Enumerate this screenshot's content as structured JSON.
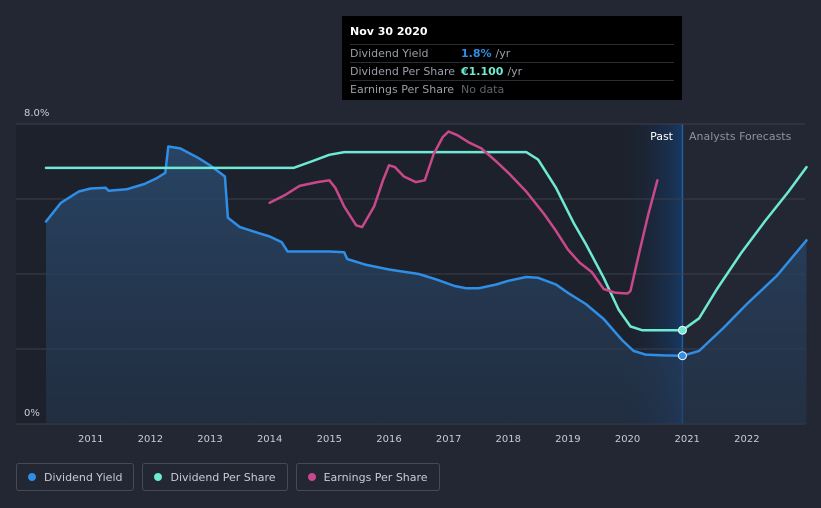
{
  "tooltip": {
    "date": "Nov 30 2020",
    "rows": [
      {
        "label": "Dividend Yield",
        "value": "1.8%",
        "unit": "/yr",
        "color": "#2f8ee6"
      },
      {
        "label": "Dividend Per Share",
        "value": "€1.100",
        "unit": "/yr",
        "color": "#6ee9d3"
      },
      {
        "label": "Earnings Per Share",
        "value": "No data",
        "unit": "",
        "color": "#5f636c"
      }
    ]
  },
  "regions": {
    "past": "Past",
    "forecast": "Analysts Forecasts"
  },
  "legend": [
    {
      "label": "Dividend Yield",
      "color": "#2f8ee6"
    },
    {
      "label": "Dividend Per Share",
      "color": "#6ee9d3"
    },
    {
      "label": "Earnings Per Share",
      "color": "#c9488a"
    }
  ],
  "chart_data": {
    "type": "line",
    "y_tick_labels": [
      "8.0%",
      "0%"
    ],
    "ylim": [
      0,
      8
    ],
    "xlim": [
      2010.25,
      2023.0
    ],
    "x_ticks": [
      2011,
      2012,
      2013,
      2014,
      2015,
      2016,
      2017,
      2018,
      2019,
      2020,
      2021,
      2022
    ],
    "past_region": [
      2019.88,
      2020.92
    ],
    "highlight_x": 2020.92,
    "series": [
      {
        "name": "Dividend Yield",
        "color": "#2f8ee6",
        "area": true,
        "points": [
          [
            2010.25,
            5.4
          ],
          [
            2010.5,
            5.9
          ],
          [
            2010.8,
            6.2
          ],
          [
            2011.0,
            6.28
          ],
          [
            2011.25,
            6.3
          ],
          [
            2011.3,
            6.22
          ],
          [
            2011.6,
            6.26
          ],
          [
            2011.9,
            6.4
          ],
          [
            2012.1,
            6.55
          ],
          [
            2012.25,
            6.7
          ],
          [
            2012.3,
            7.4
          ],
          [
            2012.5,
            7.35
          ],
          [
            2012.8,
            7.1
          ],
          [
            2013.0,
            6.9
          ],
          [
            2013.25,
            6.6
          ],
          [
            2013.3,
            5.5
          ],
          [
            2013.5,
            5.25
          ],
          [
            2013.8,
            5.1
          ],
          [
            2014.0,
            5.0
          ],
          [
            2014.2,
            4.85
          ],
          [
            2014.3,
            4.6
          ],
          [
            2015.0,
            4.6
          ],
          [
            2015.25,
            4.58
          ],
          [
            2015.3,
            4.4
          ],
          [
            2015.6,
            4.25
          ],
          [
            2016.0,
            4.12
          ],
          [
            2016.5,
            4.0
          ],
          [
            2016.8,
            3.85
          ],
          [
            2017.1,
            3.68
          ],
          [
            2017.3,
            3.62
          ],
          [
            2017.5,
            3.62
          ],
          [
            2017.8,
            3.72
          ],
          [
            2018.0,
            3.82
          ],
          [
            2018.3,
            3.92
          ],
          [
            2018.5,
            3.9
          ],
          [
            2018.8,
            3.72
          ],
          [
            2019.0,
            3.5
          ],
          [
            2019.3,
            3.2
          ],
          [
            2019.6,
            2.8
          ],
          [
            2019.9,
            2.25
          ],
          [
            2020.1,
            1.95
          ],
          [
            2020.3,
            1.85
          ],
          [
            2020.6,
            1.83
          ],
          [
            2020.92,
            1.82
          ],
          [
            2021.2,
            1.95
          ],
          [
            2021.6,
            2.55
          ],
          [
            2022.0,
            3.2
          ],
          [
            2022.5,
            3.95
          ],
          [
            2023.0,
            4.9
          ]
        ]
      },
      {
        "name": "Dividend Per Share",
        "color": "#6ee9d3",
        "area": false,
        "points": [
          [
            2010.25,
            6.83
          ],
          [
            2011.0,
            6.83
          ],
          [
            2012.0,
            6.83
          ],
          [
            2013.0,
            6.83
          ],
          [
            2014.0,
            6.83
          ],
          [
            2014.4,
            6.83
          ],
          [
            2014.7,
            7.0
          ],
          [
            2015.0,
            7.18
          ],
          [
            2015.25,
            7.25
          ],
          [
            2016.0,
            7.25
          ],
          [
            2017.0,
            7.25
          ],
          [
            2018.0,
            7.25
          ],
          [
            2018.3,
            7.25
          ],
          [
            2018.5,
            7.05
          ],
          [
            2018.8,
            6.3
          ],
          [
            2019.1,
            5.35
          ],
          [
            2019.3,
            4.8
          ],
          [
            2019.6,
            3.9
          ],
          [
            2019.85,
            3.05
          ],
          [
            2020.05,
            2.6
          ],
          [
            2020.25,
            2.5
          ],
          [
            2020.6,
            2.5
          ],
          [
            2020.92,
            2.5
          ],
          [
            2021.2,
            2.82
          ],
          [
            2021.5,
            3.6
          ],
          [
            2021.9,
            4.55
          ],
          [
            2022.3,
            5.4
          ],
          [
            2022.7,
            6.2
          ],
          [
            2023.0,
            6.85
          ]
        ]
      },
      {
        "name": "Earnings Per Share",
        "color": "#c9488a",
        "area": false,
        "points": [
          [
            2014.0,
            5.9
          ],
          [
            2014.25,
            6.1
          ],
          [
            2014.5,
            6.35
          ],
          [
            2014.8,
            6.45
          ],
          [
            2015.0,
            6.5
          ],
          [
            2015.1,
            6.3
          ],
          [
            2015.25,
            5.8
          ],
          [
            2015.45,
            5.3
          ],
          [
            2015.55,
            5.25
          ],
          [
            2015.75,
            5.8
          ],
          [
            2015.9,
            6.5
          ],
          [
            2016.0,
            6.9
          ],
          [
            2016.1,
            6.85
          ],
          [
            2016.25,
            6.6
          ],
          [
            2016.45,
            6.45
          ],
          [
            2016.6,
            6.5
          ],
          [
            2016.75,
            7.2
          ],
          [
            2016.9,
            7.65
          ],
          [
            2017.0,
            7.8
          ],
          [
            2017.15,
            7.7
          ],
          [
            2017.35,
            7.5
          ],
          [
            2017.55,
            7.35
          ],
          [
            2017.8,
            7.0
          ],
          [
            2018.0,
            6.7
          ],
          [
            2018.3,
            6.2
          ],
          [
            2018.6,
            5.6
          ],
          [
            2018.8,
            5.15
          ],
          [
            2019.0,
            4.65
          ],
          [
            2019.2,
            4.3
          ],
          [
            2019.4,
            4.05
          ],
          [
            2019.6,
            3.6
          ],
          [
            2019.8,
            3.5
          ],
          [
            2020.0,
            3.48
          ],
          [
            2020.05,
            3.55
          ],
          [
            2020.2,
            4.6
          ],
          [
            2020.35,
            5.6
          ],
          [
            2020.5,
            6.5
          ]
        ]
      }
    ]
  }
}
